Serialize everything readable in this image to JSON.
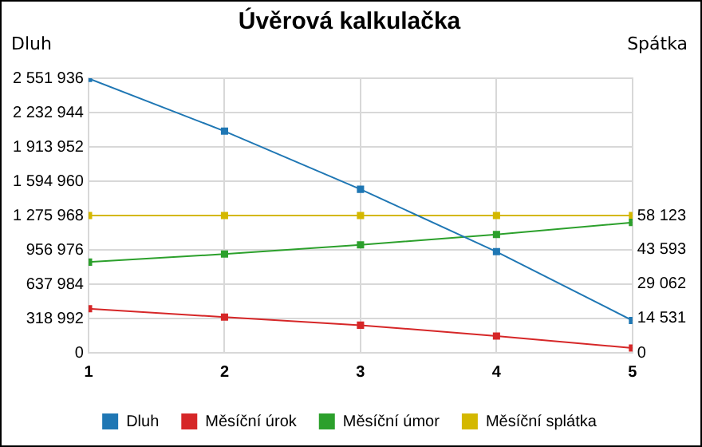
{
  "chart_data": {
    "type": "line",
    "title": "Úvěrová kalkulačka",
    "ylabel": "Dluh",
    "y2label": "Spátka",
    "x": [
      1,
      2,
      3,
      4,
      5
    ],
    "xlim": [
      1,
      5
    ],
    "xticks": [
      1,
      2,
      3,
      4,
      5
    ],
    "ylim": [
      0,
      2551936
    ],
    "yticks": [
      {
        "value": 0,
        "label": "0"
      },
      {
        "value": 318992,
        "label": "318 992"
      },
      {
        "value": 637984,
        "label": "637 984"
      },
      {
        "value": 956976,
        "label": "956 976"
      },
      {
        "value": 1275968,
        "label": "1 275 968"
      },
      {
        "value": 1594960,
        "label": "1 594 960"
      },
      {
        "value": 1913952,
        "label": "1 913 952"
      },
      {
        "value": 2232944,
        "label": "2 232 944"
      },
      {
        "value": 2551936,
        "label": "2 551 936"
      }
    ],
    "y2lim": [
      0,
      116246
    ],
    "y2ticks": [
      {
        "value": 0,
        "label": "0"
      },
      {
        "value": 14531,
        "label": "14 531"
      },
      {
        "value": 29062,
        "label": "29 062"
      },
      {
        "value": 43593,
        "label": "43 593"
      },
      {
        "value": 58123,
        "label": "58 123"
      }
    ],
    "series": [
      {
        "name": "Dluh",
        "color": "#1f77b4",
        "values": [
          2550000,
          2060000,
          1520000,
          940000,
          300000
        ]
      },
      {
        "name": "Měsíční úrok",
        "color": "#d62728",
        "values": [
          18700,
          15100,
          11700,
          7100,
          2000
        ],
        "axis": "y2"
      },
      {
        "name": "Měsíční úmor",
        "color": "#2ca02c",
        "values": [
          38400,
          41800,
          45700,
          50100,
          55200
        ],
        "axis": "y2"
      },
      {
        "name": "Měsíční splátka",
        "color": "#d4b800",
        "values": [
          58100,
          58100,
          58100,
          58100,
          58100
        ],
        "axis": "y2"
      }
    ],
    "grid": true,
    "legend": "bottom",
    "marker": "square",
    "line_style": "solid"
  }
}
